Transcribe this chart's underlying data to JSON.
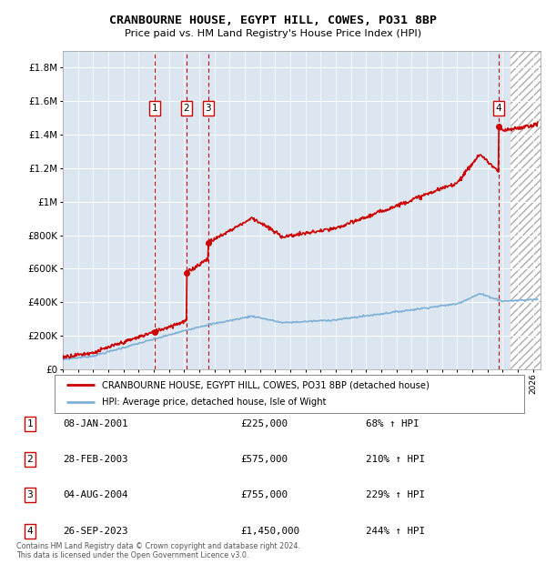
{
  "title": "CRANBOURNE HOUSE, EGYPT HILL, COWES, PO31 8BP",
  "subtitle": "Price paid vs. HM Land Registry's House Price Index (HPI)",
  "footnote": "Contains HM Land Registry data © Crown copyright and database right 2024.\nThis data is licensed under the Open Government Licence v3.0.",
  "legend_line1": "CRANBOURNE HOUSE, EGYPT HILL, COWES, PO31 8BP (detached house)",
  "legend_line2": "HPI: Average price, detached house, Isle of Wight",
  "transactions": [
    {
      "num": 1,
      "date": "08-JAN-2001",
      "year": 2001.04,
      "price": 225000,
      "label": "1"
    },
    {
      "num": 2,
      "date": "28-FEB-2003",
      "year": 2003.16,
      "price": 575000,
      "label": "2"
    },
    {
      "num": 3,
      "date": "04-AUG-2004",
      "year": 2004.59,
      "price": 755000,
      "label": "3"
    },
    {
      "num": 4,
      "date": "26-SEP-2023",
      "year": 2023.73,
      "price": 1450000,
      "label": "4"
    }
  ],
  "table_rows": [
    [
      "1",
      "08-JAN-2001",
      "£225,000",
      "68% ↑ HPI"
    ],
    [
      "2",
      "28-FEB-2003",
      "£575,000",
      "210% ↑ HPI"
    ],
    [
      "3",
      "04-AUG-2004",
      "£755,000",
      "229% ↑ HPI"
    ],
    [
      "4",
      "26-SEP-2023",
      "£1,450,000",
      "244% ↑ HPI"
    ]
  ],
  "ylim": [
    0,
    1900000
  ],
  "xlim_start": 1995.0,
  "xlim_end": 2026.5,
  "hpi_color": "#7bafd4",
  "price_color": "#cc0000",
  "bg_color": "#dce6f1",
  "grid_color": "#ffffff",
  "dashed_color": "#cc0000",
  "box_color": "#cc0000",
  "hatch_start": 2024.5
}
